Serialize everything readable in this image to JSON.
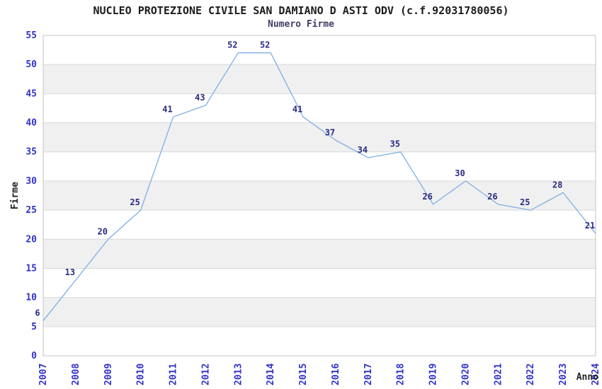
{
  "header": {
    "title": "NUCLEO PROTEZIONE CIVILE SAN DAMIANO D ASTI ODV (c.f.92031780056)",
    "subtitle": "Numero Firme"
  },
  "chart_data": {
    "type": "line",
    "title": "NUCLEO PROTEZIONE CIVILE SAN DAMIANO D ASTI ODV (c.f.92031780056)",
    "subtitle": "Numero Firme",
    "xlabel": "Anno",
    "ylabel": "Firme",
    "x": [
      "2007",
      "2008",
      "2009",
      "2010",
      "2011",
      "2012",
      "2013",
      "2014",
      "2015",
      "2016",
      "2017",
      "2018",
      "2019",
      "2020",
      "2021",
      "2022",
      "2023",
      "2024"
    ],
    "values": [
      6,
      13,
      20,
      25,
      41,
      43,
      52,
      52,
      41,
      37,
      34,
      35,
      26,
      30,
      26,
      25,
      28,
      21
    ],
    "ylim": [
      0,
      55
    ],
    "ytick_step": 5,
    "grid": "horizontal gridlines with alternating shaded bands every 5 units",
    "legend": "none",
    "data_labels": true,
    "colors": {
      "line": "#7FAFE3",
      "data_label": "#2A2A85",
      "tick_label": "#3232CC",
      "axis_title": "#222222",
      "title": "#1c1c1c",
      "subtitle": "#3f3f66",
      "band": "#F0F0F0",
      "gridline": "#D9D9D9",
      "plot_border": "#C3C3C3",
      "background": "#FFFFFF"
    }
  }
}
